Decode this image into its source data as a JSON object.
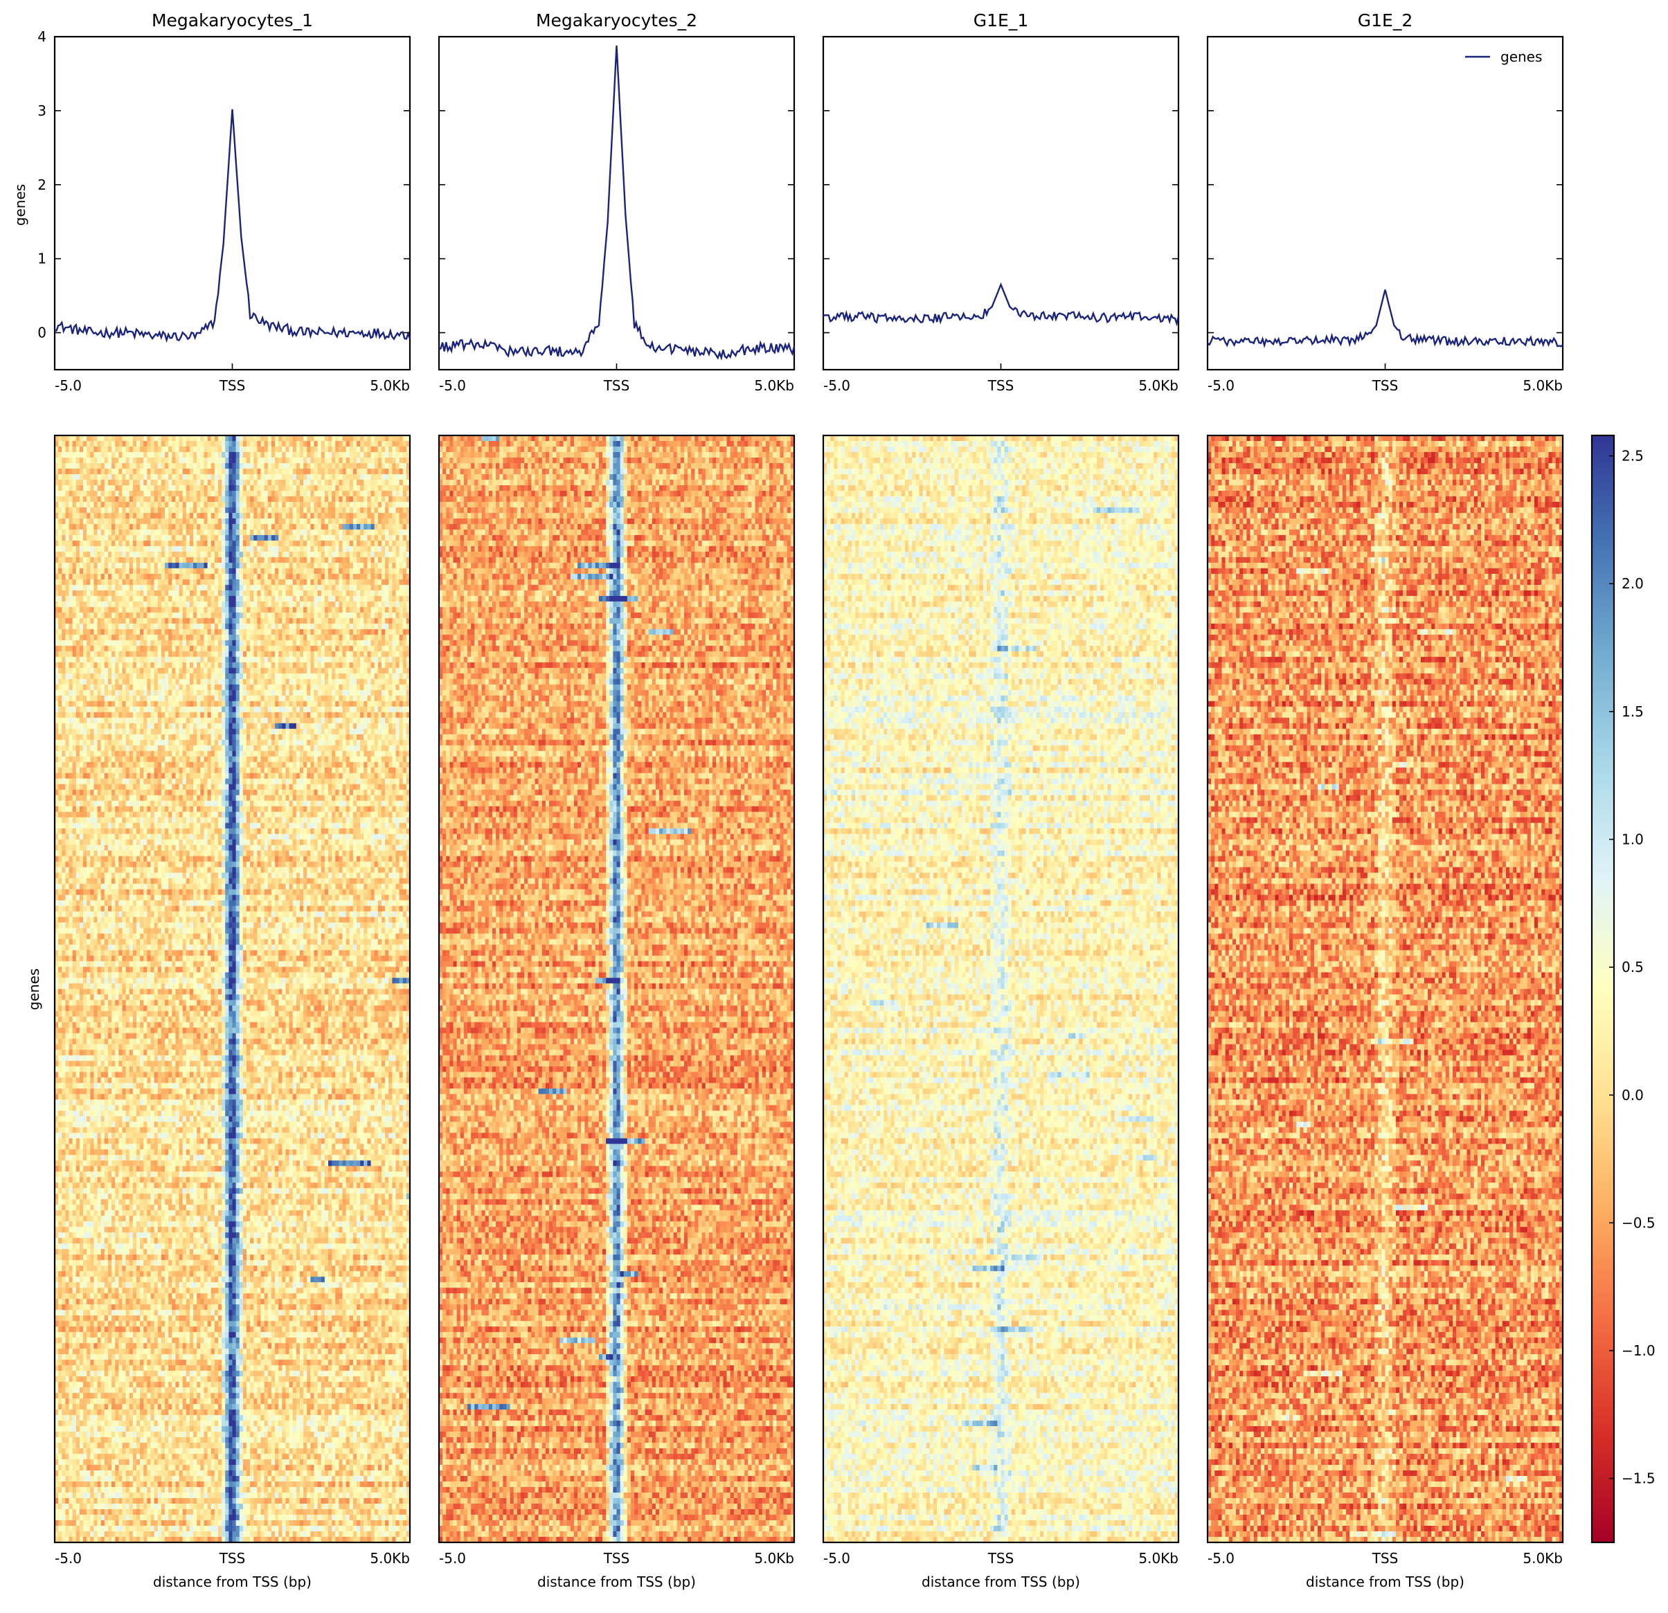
{
  "chart_data": {
    "type": "heatmap",
    "description_type": "profile line plots (top row) above heatmaps (bottom row) for four samples",
    "panels": [
      {
        "title": "Megakaryocytes_1",
        "profile": {
          "x": [
            -5000,
            -4000,
            -3000,
            -2000,
            -1000,
            -500,
            -250,
            0,
            250,
            500,
            1000,
            2000,
            3000,
            4000,
            5000
          ],
          "y": [
            0.1,
            0.0,
            0.0,
            -0.05,
            -0.05,
            0.15,
            1.2,
            3.02,
            1.3,
            0.25,
            0.1,
            0.0,
            0.0,
            0.0,
            -0.03
          ],
          "noise_level": 0.07,
          "series_name": "genes",
          "color": "#1a237e"
        }
      },
      {
        "title": "Megakaryocytes_2",
        "profile": {
          "x": [
            -5000,
            -4000,
            -3000,
            -2000,
            -1000,
            -500,
            -250,
            0,
            250,
            500,
            1000,
            2000,
            3000,
            4000,
            5000
          ],
          "y": [
            -0.2,
            -0.15,
            -0.25,
            -0.25,
            -0.25,
            0.1,
            1.5,
            3.88,
            1.6,
            0.1,
            -0.2,
            -0.25,
            -0.28,
            -0.2,
            -0.22
          ],
          "noise_level": 0.07,
          "series_name": "genes",
          "color": "#1a237e"
        }
      },
      {
        "title": "G1E_1",
        "profile": {
          "x": [
            -5000,
            -4000,
            -3000,
            -2000,
            -1000,
            -500,
            -250,
            0,
            250,
            500,
            1000,
            2000,
            3000,
            4000,
            5000
          ],
          "y": [
            0.2,
            0.22,
            0.18,
            0.2,
            0.22,
            0.25,
            0.35,
            0.65,
            0.35,
            0.25,
            0.22,
            0.22,
            0.2,
            0.22,
            0.18
          ],
          "noise_level": 0.06,
          "series_name": "genes",
          "color": "#1a237e"
        }
      },
      {
        "title": "G1E_2",
        "profile": {
          "x": [
            -5000,
            -4000,
            -3000,
            -2000,
            -1000,
            -500,
            -250,
            0,
            250,
            500,
            1000,
            2000,
            3000,
            4000,
            5000
          ],
          "y": [
            -0.1,
            -0.12,
            -0.12,
            -0.1,
            -0.1,
            -0.05,
            0.1,
            0.58,
            0.1,
            -0.05,
            -0.1,
            -0.12,
            -0.12,
            -0.12,
            -0.14
          ],
          "noise_level": 0.06,
          "series_name": "genes",
          "color": "#1a237e"
        }
      }
    ],
    "profile_ylabel": "genes",
    "profile_ylim": [
      -0.5,
      4
    ],
    "profile_yticks": [
      "0",
      "1",
      "2",
      "3",
      "4"
    ],
    "xticks": [
      "-5.0",
      "TSS",
      "5.0Kb"
    ],
    "legend": {
      "label": "genes",
      "position": "top-right of last profile panel"
    },
    "heatmap_ylabel": "genes",
    "heatmap_xlabel": "distance from TSS (bp)",
    "colorbar": {
      "colormap": "RdYlBu",
      "range": [
        -1.75,
        2.58
      ],
      "ticks": [
        "2.5",
        "2.0",
        "1.5",
        "1.0",
        "0.5",
        "0.0",
        "−0.5",
        "−1.0",
        "−1.5"
      ],
      "tick_values": [
        2.5,
        2.0,
        1.5,
        1.0,
        0.5,
        0.0,
        -0.5,
        -1.0,
        -1.5
      ]
    }
  }
}
